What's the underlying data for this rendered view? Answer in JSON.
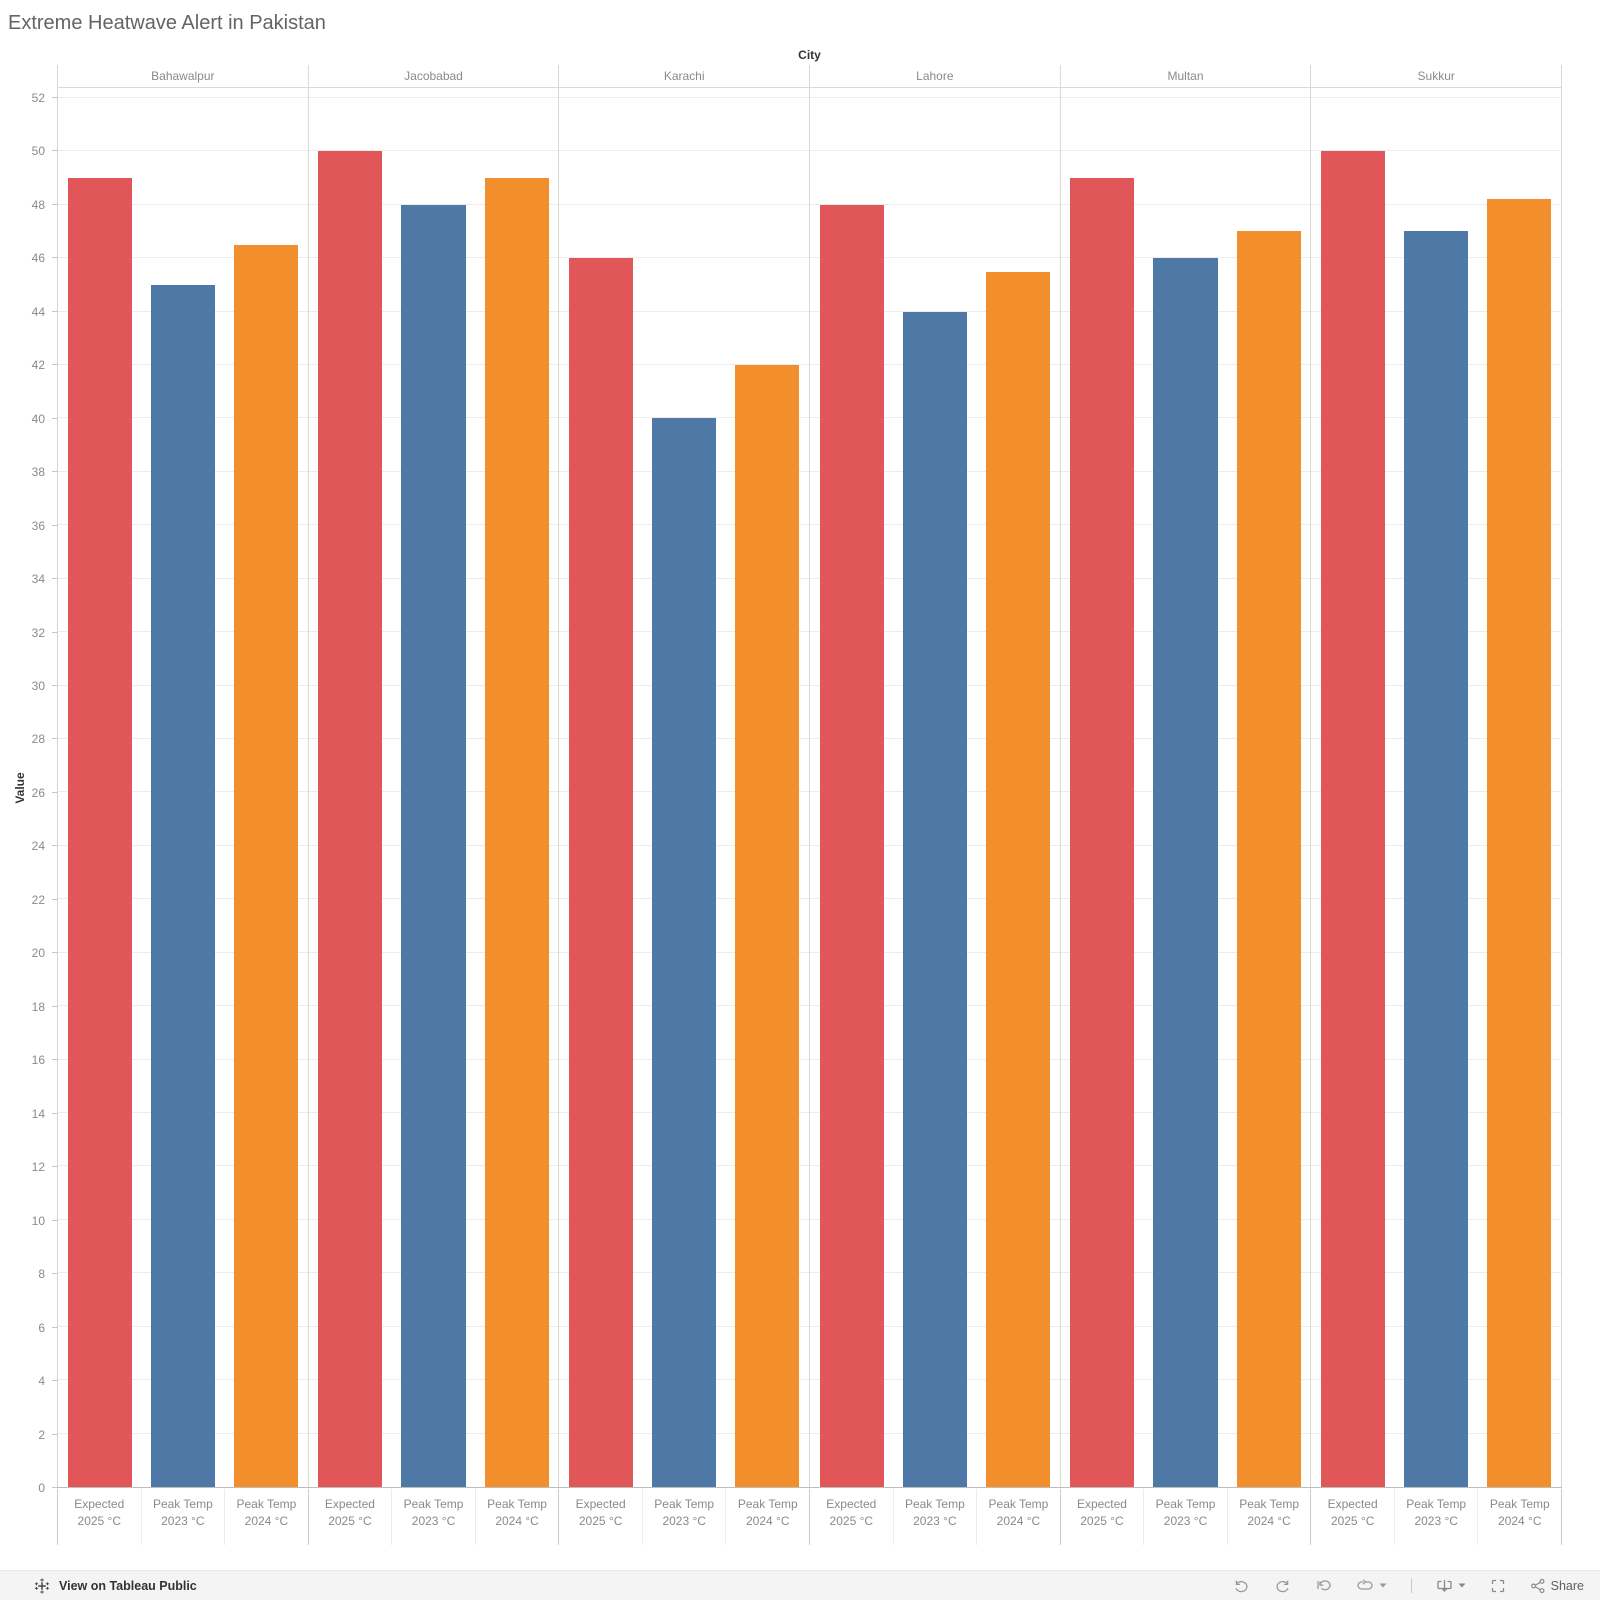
{
  "chart_data": {
    "type": "bar",
    "title": "Extreme Heatwave Alert in Pakistan",
    "column_axis_label": "City",
    "ylabel": "Value",
    "ylim": [
      0,
      52
    ],
    "ytick_step": 2,
    "grid": true,
    "legend_position": "none",
    "categories": [
      "Bahawalpur",
      "Jacobabad",
      "Karachi",
      "Lahore",
      "Multan",
      "Sukkur"
    ],
    "series": [
      {
        "name": "Expected 2025 °C",
        "color": "#e15759",
        "values": [
          49,
          50,
          46,
          48,
          49,
          50
        ]
      },
      {
        "name": "Peak Temp 2023 °C",
        "color": "#4e79a7",
        "values": [
          45,
          48,
          40,
          44,
          46,
          47
        ]
      },
      {
        "name": "Peak Temp 2024 °C",
        "color": "#f28e2b",
        "values": [
          46.5,
          49,
          42,
          45.5,
          47,
          48.2
        ]
      }
    ],
    "bar_tick_labels": [
      [
        "Expected",
        "2025 °C"
      ],
      [
        "Peak Temp",
        "2023 °C"
      ],
      [
        "Peak Temp",
        "2024 °C"
      ]
    ]
  },
  "toolbar": {
    "view_on_tableau_label": "View on Tableau Public",
    "share_label": "Share",
    "icon_names": [
      "tableau-logo-icon",
      "undo-icon",
      "redo-icon",
      "revert-icon",
      "refresh-icon",
      "download-icon",
      "fullscreen-icon",
      "share-icon"
    ]
  }
}
